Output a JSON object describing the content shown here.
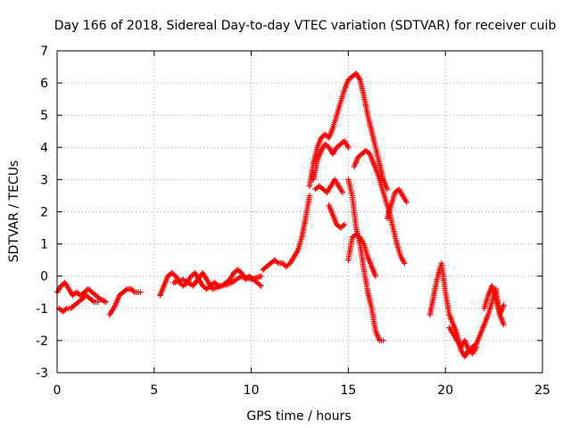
{
  "chart_data": {
    "type": "scatter",
    "title": "Day 166 of 2018, Sidereal Day-to-day VTEC variation (SDTVAR) for receiver cuib",
    "xlabel": "GPS time / hours",
    "ylabel": "SDTVAR / TECUs",
    "xlim": [
      0,
      25
    ],
    "ylim": [
      -3,
      7
    ],
    "x_ticks": [
      "0",
      "5",
      "10",
      "15",
      "20",
      "25"
    ],
    "y_ticks": [
      "-3",
      "-2",
      "-1",
      "0",
      "1",
      "2",
      "3",
      "4",
      "5",
      "6",
      "7"
    ],
    "grid": true,
    "marker": "+",
    "color": "#ff0000",
    "series": [
      {
        "name": "seg1",
        "x": [
          0.0,
          0.2,
          0.4,
          0.6,
          0.8,
          1.0,
          1.2,
          1.4,
          1.6,
          1.8,
          2.0,
          2.2,
          2.5
        ],
        "values": [
          -0.5,
          -0.3,
          -0.2,
          -0.4,
          -0.6,
          -0.5,
          -0.6,
          -0.5,
          -0.4,
          -0.5,
          -0.6,
          -0.7,
          -0.8
        ]
      },
      {
        "name": "seg2",
        "x": [
          0.1,
          0.3,
          0.5,
          0.7,
          0.9,
          1.1,
          1.3,
          1.5,
          1.7,
          1.9,
          2.1
        ],
        "values": [
          -1.0,
          -1.1,
          -1.0,
          -1.0,
          -0.9,
          -0.8,
          -0.7,
          -0.6,
          -0.7,
          -0.8,
          -0.8
        ]
      },
      {
        "name": "seg3",
        "x": [
          2.7,
          2.9,
          3.0,
          3.2,
          3.4,
          3.6,
          3.8,
          4.0,
          4.2,
          4.3
        ],
        "values": [
          -1.2,
          -1.0,
          -0.9,
          -0.6,
          -0.5,
          -0.4,
          -0.4,
          -0.5,
          -0.5,
          -0.5
        ]
      },
      {
        "name": "seg4",
        "x": [
          5.3,
          5.5,
          5.7,
          5.9,
          6.1,
          6.3,
          6.5,
          6.7,
          6.9,
          7.1,
          7.3,
          7.5,
          7.7,
          7.9,
          8.1,
          8.3,
          8.5,
          8.7,
          8.9,
          9.1,
          9.3,
          9.5,
          9.7,
          9.9,
          10.1,
          10.3,
          10.5
        ],
        "values": [
          -0.6,
          -0.3,
          0.0,
          0.1,
          0.0,
          -0.2,
          -0.3,
          -0.2,
          0.0,
          0.1,
          -0.1,
          -0.3,
          -0.4,
          -0.3,
          -0.2,
          -0.3,
          -0.3,
          -0.2,
          -0.1,
          0.1,
          0.2,
          0.1,
          -0.1,
          0.0,
          -0.1,
          -0.2,
          -0.3
        ]
      },
      {
        "name": "seg5",
        "x": [
          6.0,
          6.5,
          7.0,
          7.5,
          8.0,
          8.5,
          9.0,
          9.5,
          10.0,
          10.5
        ],
        "values": [
          -0.2,
          -0.1,
          -0.3,
          0.1,
          -0.4,
          -0.3,
          -0.2,
          0.0,
          -0.1,
          0.0
        ]
      },
      {
        "name": "seg6",
        "x": [
          10.6,
          10.8,
          11.0,
          11.2,
          11.4,
          11.6,
          11.8,
          12.0,
          12.2,
          12.4,
          12.6,
          12.8,
          13.0
        ],
        "values": [
          0.2,
          0.3,
          0.4,
          0.5,
          0.4,
          0.4,
          0.3,
          0.4,
          0.6,
          0.8,
          1.2,
          1.8,
          2.5
        ]
      },
      {
        "name": "seg7",
        "x": [
          13.0,
          13.2,
          13.4,
          13.6,
          13.8,
          14.0,
          14.2,
          14.4,
          14.6,
          14.8,
          15.0,
          15.2,
          15.4,
          15.6,
          15.8,
          16.0,
          16.2,
          16.4,
          16.6,
          16.8,
          17.0
        ],
        "values": [
          2.8,
          3.5,
          4.0,
          4.3,
          4.4,
          4.3,
          4.6,
          5.0,
          5.4,
          5.8,
          6.1,
          6.2,
          6.3,
          6.1,
          5.6,
          5.0,
          4.5,
          4.0,
          3.5,
          3.0,
          2.7
        ]
      },
      {
        "name": "seg8",
        "x": [
          13.2,
          13.4,
          13.6,
          13.8,
          14.0,
          14.2,
          14.4,
          14.6,
          14.8,
          15.0
        ],
        "values": [
          3.0,
          3.6,
          3.9,
          4.1,
          4.0,
          3.8,
          4.0,
          4.1,
          4.2,
          4.0
        ]
      },
      {
        "name": "seg9",
        "x": [
          13.3,
          13.5,
          13.7,
          13.9,
          14.1,
          14.3,
          14.5,
          14.7
        ],
        "values": [
          2.7,
          2.8,
          2.7,
          2.6,
          2.8,
          3.0,
          2.8,
          2.6
        ]
      },
      {
        "name": "seg10",
        "x": [
          14.0,
          14.2,
          14.4,
          14.6,
          14.8
        ],
        "values": [
          2.2,
          1.9,
          1.6,
          1.5,
          1.6
        ]
      },
      {
        "name": "seg11",
        "x": [
          15.0,
          15.2,
          15.4,
          15.6,
          15.8,
          16.0,
          16.2,
          16.4,
          16.6,
          16.8
        ],
        "values": [
          3.0,
          2.5,
          1.5,
          1.0,
          0.2,
          -0.5,
          -1.0,
          -1.7,
          -2.0,
          -2.0
        ]
      },
      {
        "name": "seg12",
        "x": [
          15.0,
          15.2,
          15.4,
          15.6,
          15.8,
          16.0,
          16.2,
          16.4
        ],
        "values": [
          0.5,
          1.2,
          1.3,
          1.2,
          1.0,
          0.6,
          0.3,
          0.0
        ]
      },
      {
        "name": "seg13",
        "x": [
          15.3,
          15.5,
          15.7,
          15.9,
          16.1,
          16.3,
          16.5,
          16.7,
          16.9,
          17.1,
          17.3,
          17.5,
          17.7,
          17.9
        ],
        "values": [
          3.4,
          3.7,
          3.8,
          3.9,
          3.8,
          3.5,
          3.2,
          2.8,
          2.4,
          2.0,
          1.5,
          1.0,
          0.6,
          0.4
        ]
      },
      {
        "name": "seg14",
        "x": [
          17.0,
          17.2,
          17.4,
          17.6,
          17.8,
          18.0
        ],
        "values": [
          1.8,
          2.2,
          2.6,
          2.7,
          2.5,
          2.3
        ]
      },
      {
        "name": "seg15",
        "x": [
          19.2,
          19.4,
          19.6,
          19.8,
          20.0,
          20.2,
          20.4,
          20.6,
          20.8,
          21.0,
          21.2,
          21.4,
          21.6,
          21.8,
          22.0,
          22.2,
          22.4,
          22.6,
          22.8,
          23.0
        ],
        "values": [
          -1.2,
          -0.6,
          0.0,
          0.4,
          -0.5,
          -1.2,
          -1.5,
          -1.8,
          -2.3,
          -2.5,
          -2.3,
          -2.2,
          -2.1,
          -1.8,
          -1.5,
          -1.2,
          -0.8,
          -0.4,
          -1.2,
          -1.5
        ]
      },
      {
        "name": "seg16",
        "x": [
          20.2,
          20.4,
          20.6,
          20.8,
          21.0,
          21.2,
          21.4,
          21.6
        ],
        "values": [
          -1.6,
          -1.8,
          -2.0,
          -2.2,
          -2.0,
          -2.3,
          -2.4,
          -2.2
        ]
      },
      {
        "name": "seg17",
        "x": [
          22.0,
          22.2,
          22.4,
          22.6,
          22.8,
          23.0
        ],
        "values": [
          -1.0,
          -0.6,
          -0.3,
          -0.7,
          -1.2,
          -0.9
        ]
      }
    ]
  }
}
